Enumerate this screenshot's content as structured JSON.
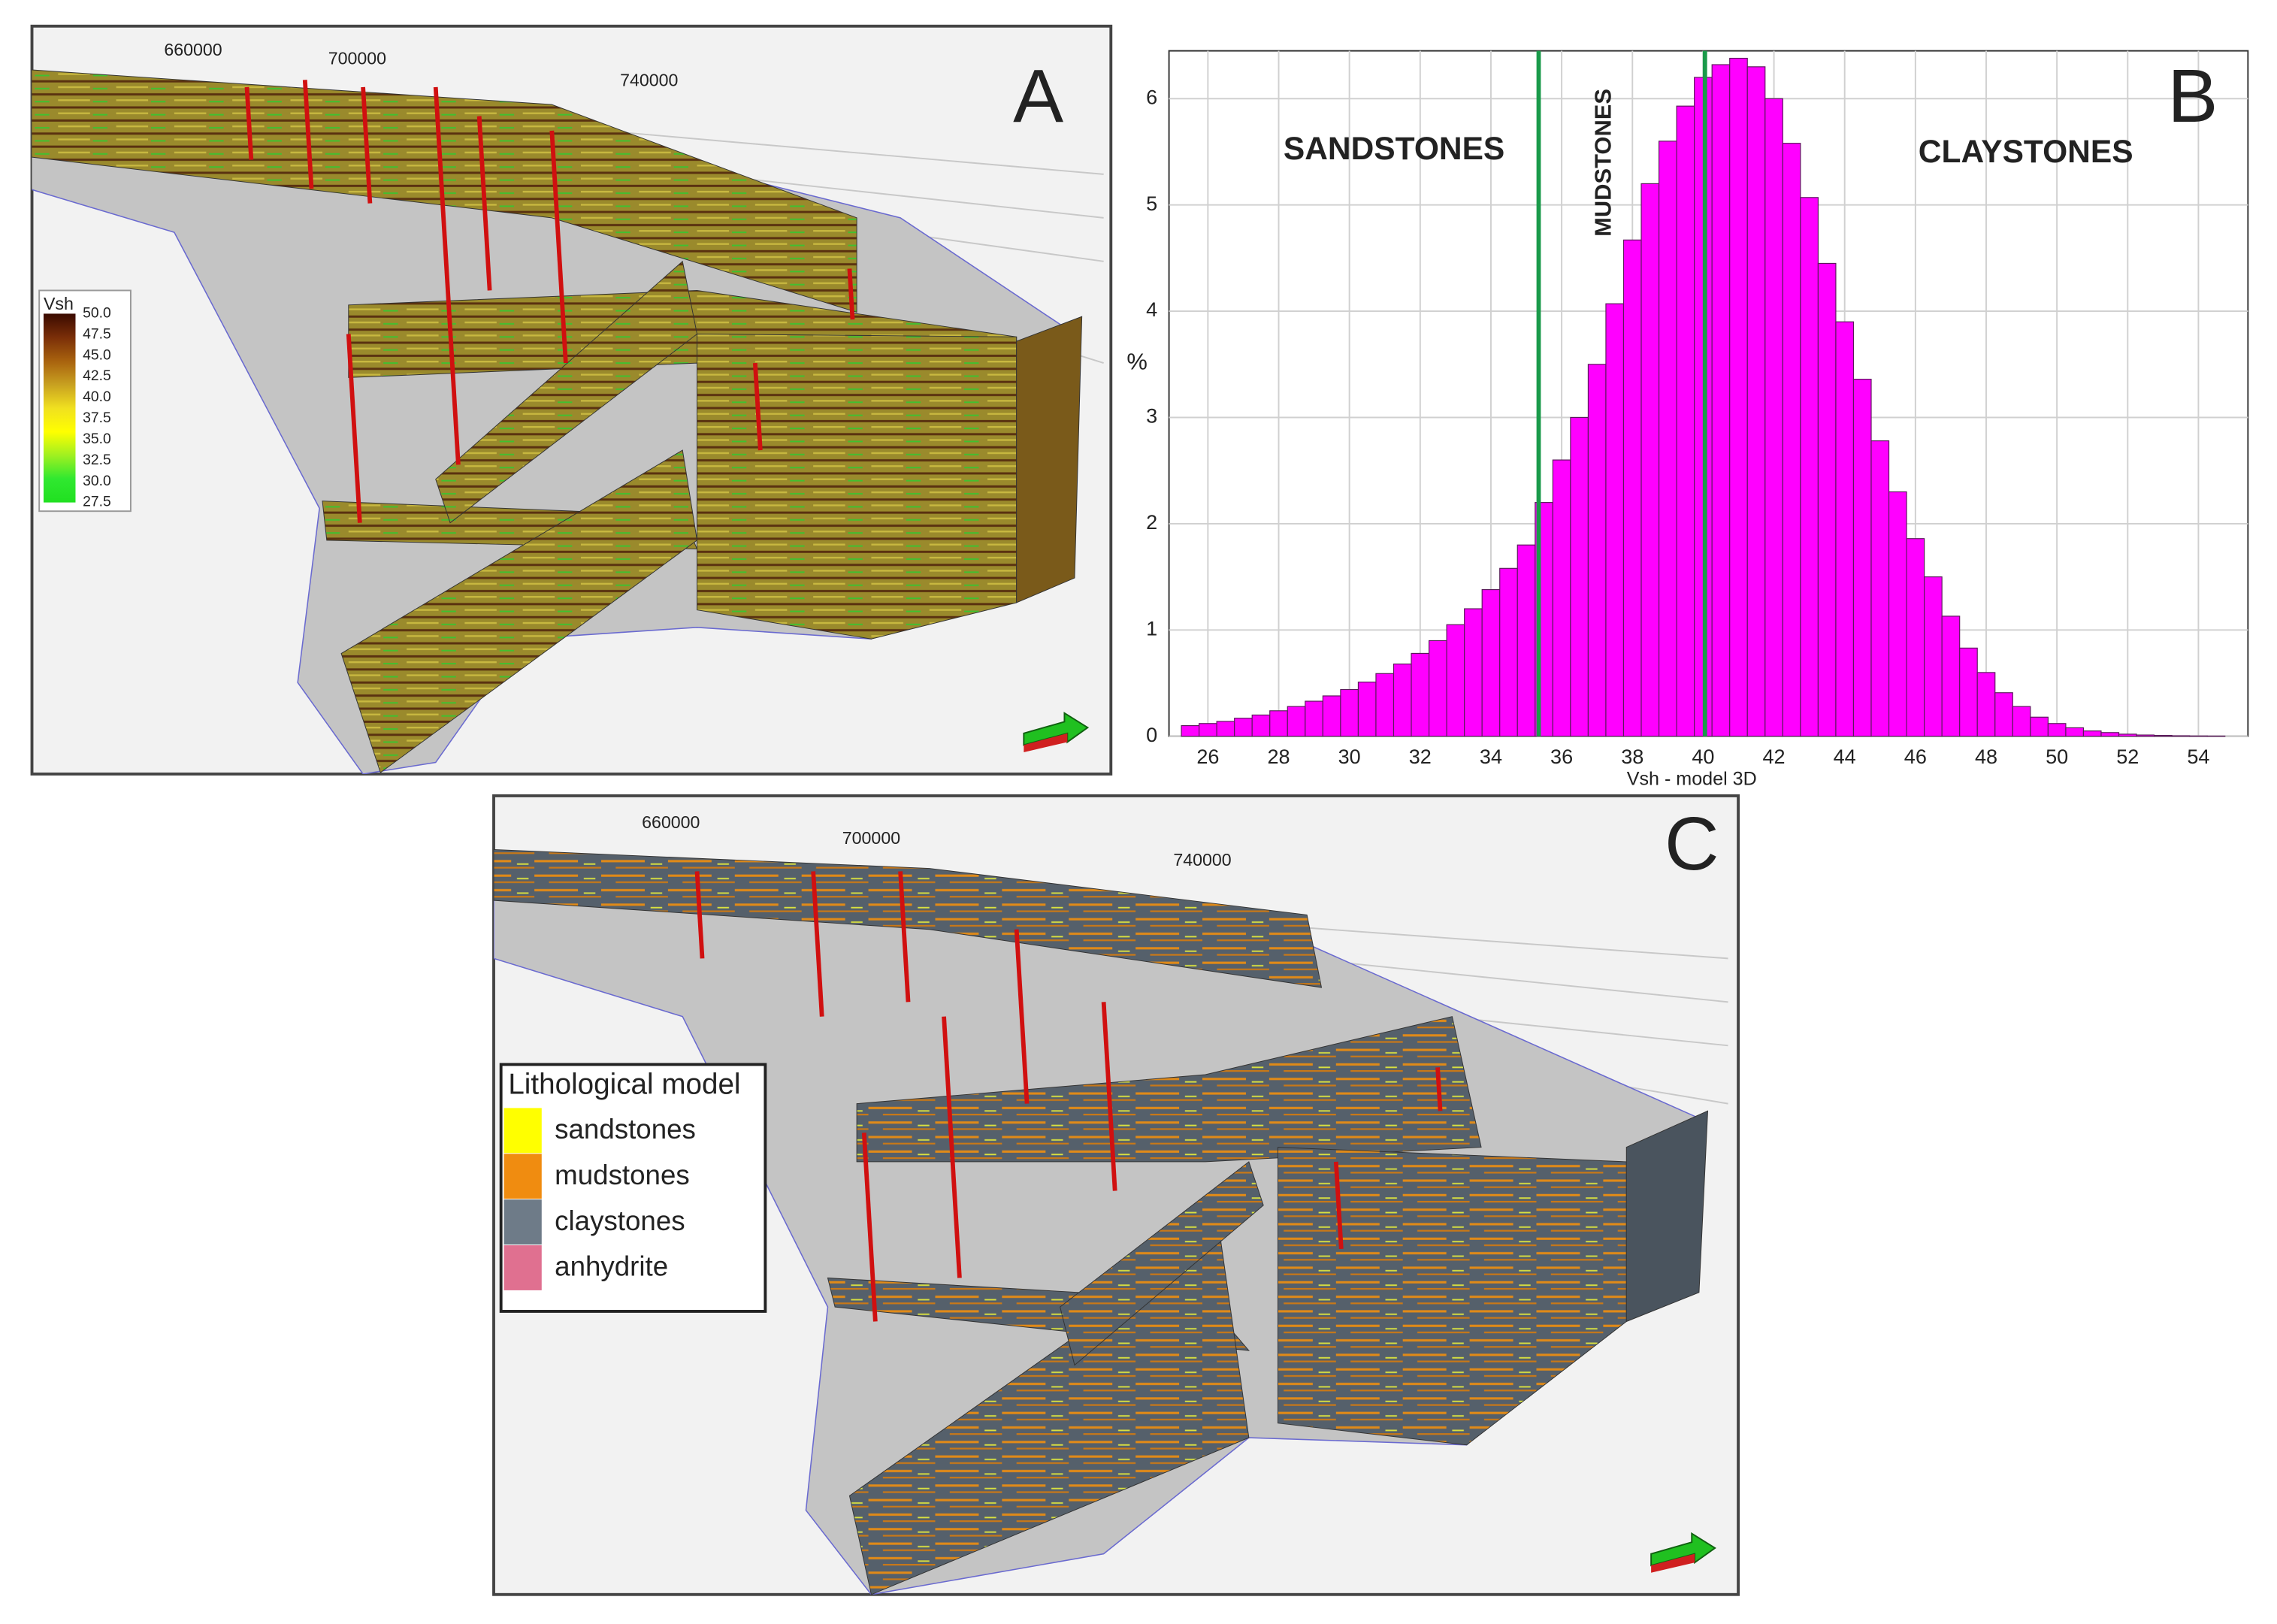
{
  "panel_a": {
    "label": "A",
    "axis_labels": [
      "660000",
      "700000",
      "740000"
    ],
    "legend": {
      "title": "Vsh",
      "labels": [
        "50.0",
        "47.5",
        "45.0",
        "42.5",
        "40.0",
        "37.5",
        "35.0",
        "32.5",
        "30.0",
        "27.5"
      ],
      "colors": [
        "#3a0a00",
        "#7a2e08",
        "#a8620e",
        "#c8a020",
        "#f0e020",
        "#ffff00",
        "#a0f020",
        "#30e830",
        "#20e020"
      ]
    }
  },
  "chart_data": {
    "type": "histogram",
    "panel_label": "B",
    "xlabel": "Vsh - model 3D",
    "ylabel": "%",
    "bins": [
      25.25,
      25.75,
      26.25,
      26.75,
      27.25,
      27.75,
      28.25,
      28.75,
      29.25,
      29.75,
      30.25,
      30.75,
      31.25,
      31.75,
      32.25,
      32.75,
      33.25,
      33.75,
      34.25,
      34.75,
      35.25,
      35.75,
      36.25,
      36.75,
      37.25,
      37.75,
      38.25,
      38.75,
      39.25,
      39.75,
      40.25,
      40.75,
      41.25,
      41.75,
      42.25,
      42.75,
      43.25,
      43.75,
      44.25,
      44.75,
      45.25,
      45.75,
      46.25,
      46.75,
      47.25,
      47.75,
      48.25,
      48.75,
      49.25,
      49.75,
      50.25,
      50.75,
      51.25,
      51.75,
      52.25,
      52.75,
      53.25,
      53.75,
      54.25,
      54.75
    ],
    "values": [
      0.1,
      0.12,
      0.14,
      0.17,
      0.2,
      0.24,
      0.28,
      0.33,
      0.38,
      0.44,
      0.51,
      0.59,
      0.68,
      0.78,
      0.9,
      1.05,
      1.2,
      1.38,
      1.58,
      1.8,
      2.2,
      2.6,
      3.0,
      3.5,
      4.07,
      4.67,
      5.2,
      5.6,
      5.93,
      6.2,
      6.32,
      6.38,
      6.3,
      6.0,
      5.58,
      5.07,
      4.45,
      3.9,
      3.36,
      2.78,
      2.3,
      1.86,
      1.5,
      1.13,
      0.83,
      0.6,
      0.41,
      0.28,
      0.18,
      0.12,
      0.08,
      0.05,
      0.035,
      0.02,
      0.012,
      0.008,
      0.005,
      0.003,
      0.002
    ],
    "color": "#ff00ff",
    "xlim": [
      24.9,
      55.4
    ],
    "ylim": [
      0,
      6.45
    ],
    "xticks": [
      26,
      28,
      30,
      32,
      34,
      36,
      38,
      40,
      42,
      44,
      46,
      48,
      50,
      52,
      54
    ],
    "yticks": [
      0,
      1,
      2,
      3,
      4,
      5,
      6
    ],
    "grid": true,
    "vlines": [
      35.35,
      40.05
    ],
    "vline_color": "#1a9a4a",
    "annotations": [
      "SANDSTONES",
      "MUDSTONES",
      "CLAYSTONES"
    ]
  },
  "panel_c": {
    "label": "C",
    "axis_labels": [
      "660000",
      "700000",
      "740000"
    ],
    "legend": {
      "title": "Lithological model",
      "items": [
        {
          "label": "sandstones",
          "color": "#ffff00"
        },
        {
          "label": "mudstones",
          "color": "#f08c10"
        },
        {
          "label": "claystones",
          "color": "#6e7b88"
        },
        {
          "label": "anhydrite",
          "color": "#e07090"
        }
      ]
    }
  }
}
